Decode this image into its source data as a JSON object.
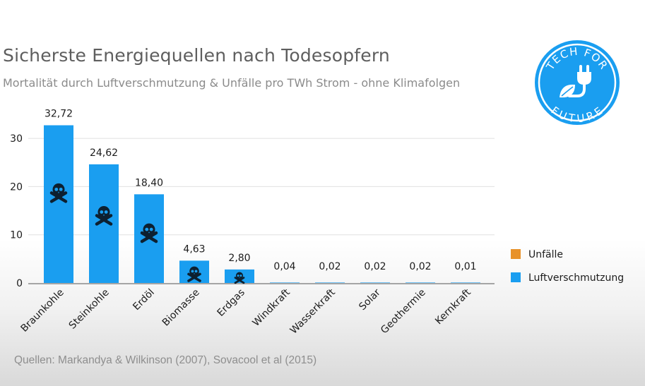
{
  "chart_data": {
    "type": "bar",
    "title": "Sicherste Energiequellen nach Todesopfern",
    "subtitle": "Mortalität durch Luftverschmutzung & Unfälle pro TWh Strom - ohne Klimafolgen",
    "categories": [
      "Braunkohle",
      "Steinkohle",
      "Erdöl",
      "Biomasse",
      "Erdgas",
      "Windkraft",
      "Wasserkraft",
      "Solar",
      "Geothermie",
      "Kernkraft"
    ],
    "series": [
      {
        "name": "Luftverschmutzung",
        "color": "#1a9ef0",
        "values": [
          32.72,
          24.62,
          18.4,
          4.63,
          2.8,
          0.04,
          0.02,
          0.02,
          0.02,
          0.01
        ]
      },
      {
        "name": "Unfälle",
        "color": "#e8922a",
        "values": [
          0,
          0,
          0,
          0,
          0,
          0,
          0,
          0,
          0,
          0
        ]
      }
    ],
    "value_labels": [
      "32,72",
      "24,62",
      "18,40",
      "4,63",
      "2,80",
      "0,04",
      "0,02",
      "0,02",
      "0,02",
      "0,01"
    ],
    "yticks": [
      0,
      10,
      20,
      30
    ],
    "ylim": [
      0,
      35
    ],
    "grid": true,
    "legend_position": "right",
    "source": "Quellen: Markandya & Wilkinson (2007), Sovacool et al (2015)"
  },
  "logo": {
    "line1": "TECH FOR",
    "line2": "FUTURE",
    "color": "#1a9ef0"
  },
  "colors": {
    "bar": "#1a9ef0",
    "accident": "#e8922a",
    "grid": "#e0e0e0",
    "axis": "#8a8a8a",
    "skull": "#0d2030"
  }
}
